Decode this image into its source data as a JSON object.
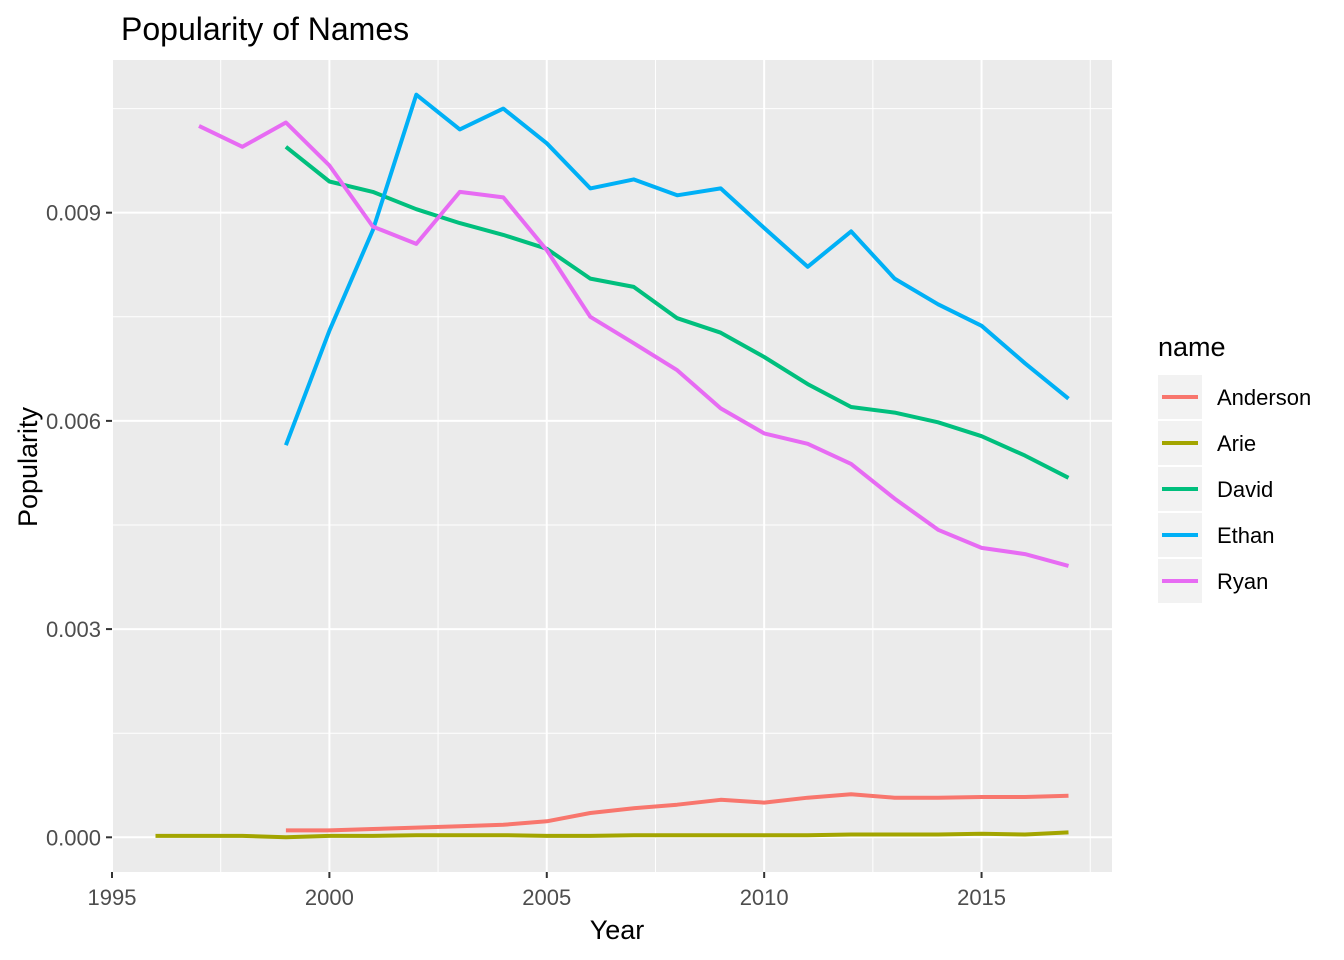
{
  "chart_data": {
    "type": "line",
    "title": "Popularity of Names",
    "xlabel": "Year",
    "ylabel": "Popularity",
    "xlim": [
      1995,
      2018
    ],
    "ylim": [
      -0.0005,
      0.0112
    ],
    "x_ticks": [
      1995,
      2000,
      2005,
      2010,
      2015
    ],
    "y_ticks": [
      0.0,
      0.003,
      0.006,
      0.009
    ],
    "y_tick_labels": [
      "0.000",
      "0.003",
      "0.006",
      "0.009"
    ],
    "grid": true,
    "legend": {
      "title": "name",
      "position": "right"
    },
    "series": [
      {
        "name": "Anderson",
        "color": "#F8766D",
        "x": [
          1999,
          2000,
          2001,
          2002,
          2003,
          2004,
          2005,
          2006,
          2007,
          2008,
          2009,
          2010,
          2011,
          2012,
          2013,
          2014,
          2015,
          2016,
          2017
        ],
        "y": [
          0.0001,
          0.0001,
          0.00012,
          0.00014,
          0.00016,
          0.00018,
          0.00023,
          0.00035,
          0.00042,
          0.00047,
          0.00054,
          0.0005,
          0.00057,
          0.00062,
          0.00057,
          0.00057,
          0.00058,
          0.00058,
          0.0006
        ]
      },
      {
        "name": "Arie",
        "color": "#A3A500",
        "x": [
          1996,
          1997,
          1998,
          1999,
          2000,
          2001,
          2002,
          2003,
          2004,
          2005,
          2006,
          2007,
          2008,
          2009,
          2010,
          2011,
          2012,
          2013,
          2014,
          2015,
          2016,
          2017
        ],
        "y": [
          2e-05,
          2e-05,
          2e-05,
          0.0,
          2e-05,
          2e-05,
          3e-05,
          3e-05,
          3e-05,
          2e-05,
          2e-05,
          3e-05,
          3e-05,
          3e-05,
          3e-05,
          3e-05,
          4e-05,
          4e-05,
          4e-05,
          5e-05,
          4e-05,
          7e-05
        ]
      },
      {
        "name": "David",
        "color": "#00BF7D",
        "x": [
          1999,
          2000,
          2001,
          2002,
          2003,
          2004,
          2005,
          2006,
          2007,
          2008,
          2009,
          2010,
          2011,
          2012,
          2013,
          2014,
          2015,
          2016,
          2017
        ],
        "y": [
          0.00995,
          0.00945,
          0.0093,
          0.00905,
          0.00885,
          0.00868,
          0.00848,
          0.00805,
          0.00793,
          0.00748,
          0.00727,
          0.00692,
          0.00653,
          0.0062,
          0.00612,
          0.00598,
          0.00578,
          0.0055,
          0.00518
        ]
      },
      {
        "name": "Ethan",
        "color": "#00B0F6",
        "x": [
          1999,
          2000,
          2001,
          2002,
          2003,
          2004,
          2005,
          2006,
          2007,
          2008,
          2009,
          2010,
          2011,
          2012,
          2013,
          2014,
          2015,
          2016,
          2017
        ],
        "y": [
          0.00565,
          0.0073,
          0.00875,
          0.0107,
          0.0102,
          0.0105,
          0.01,
          0.00935,
          0.00948,
          0.00925,
          0.00935,
          0.00878,
          0.00822,
          0.00873,
          0.00805,
          0.00768,
          0.00737,
          0.00683,
          0.00632
        ]
      },
      {
        "name": "Ryan",
        "color": "#E76BF3",
        "x": [
          1997,
          1998,
          1999,
          2000,
          2001,
          2002,
          2003,
          2004,
          2005,
          2006,
          2007,
          2008,
          2009,
          2010,
          2011,
          2012,
          2013,
          2014,
          2015,
          2016,
          2017
        ],
        "y": [
          0.01025,
          0.00995,
          0.0103,
          0.00968,
          0.0088,
          0.00855,
          0.0093,
          0.00922,
          0.00846,
          0.0075,
          0.00712,
          0.00673,
          0.00618,
          0.00582,
          0.00567,
          0.00538,
          0.00488,
          0.00443,
          0.00417,
          0.00408,
          0.00391
        ]
      }
    ]
  }
}
